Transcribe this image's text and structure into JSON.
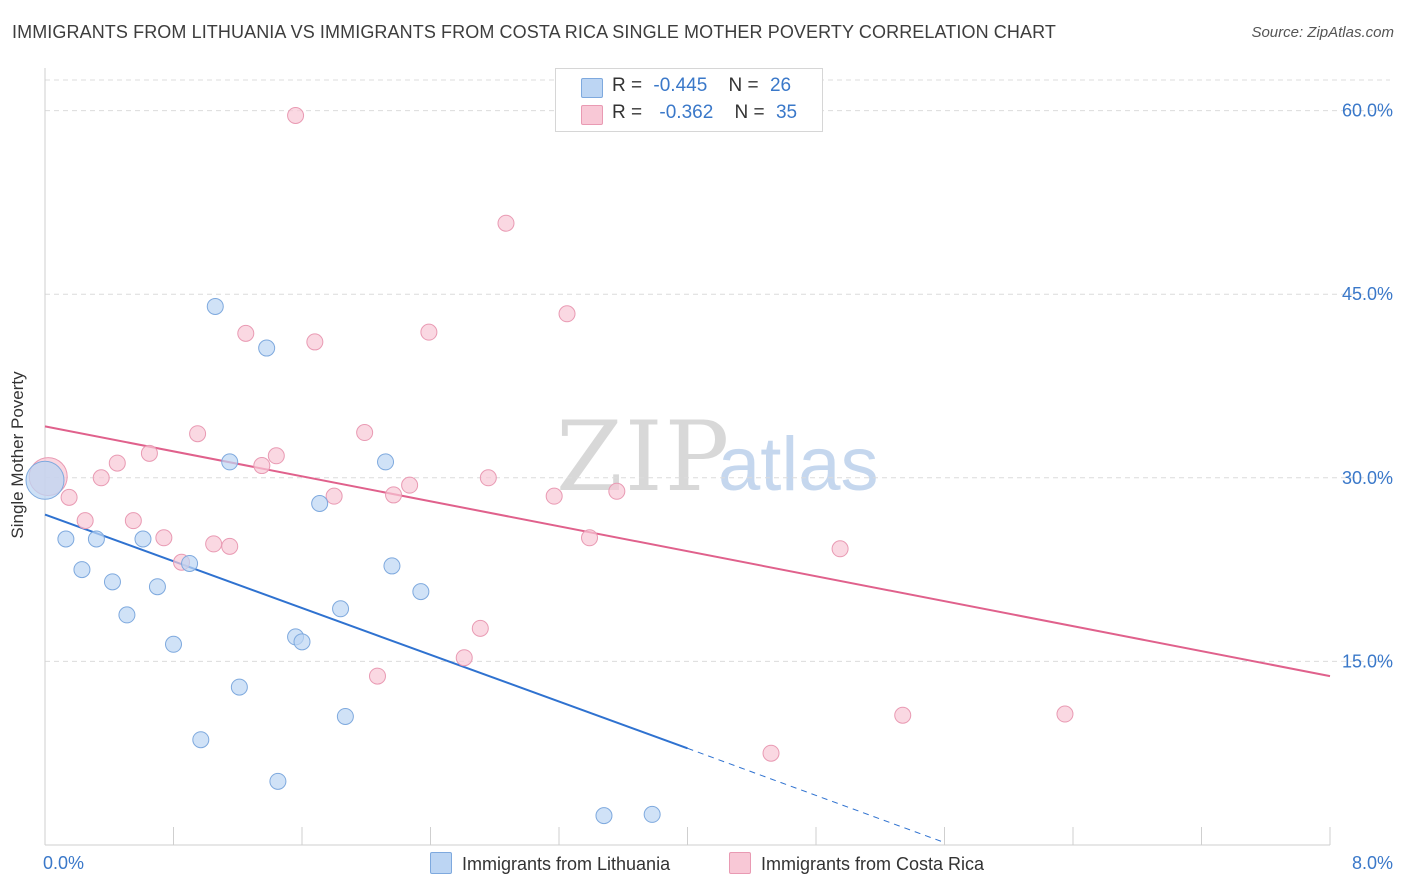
{
  "title": "IMMIGRANTS FROM LITHUANIA VS IMMIGRANTS FROM COSTA RICA SINGLE MOTHER POVERTY CORRELATION CHART",
  "source": "Source: ZipAtlas.com",
  "watermark": {
    "zip": "ZIP",
    "atlas": "atlas"
  },
  "legend_top": [
    {
      "r_label": "R =",
      "r_value": "-0.445",
      "n_label": "N =",
      "n_value": "26"
    },
    {
      "r_label": "R =",
      "r_value": "-0.362",
      "n_label": "N =",
      "n_value": "35"
    }
  ],
  "legend_bottom": [
    "Immigrants from Lithuania",
    "Immigrants from Costa Rica"
  ],
  "chart_data": {
    "type": "scatter",
    "xlabel": "",
    "ylabel": "Single Mother Poverty",
    "xlim": [
      0,
      8
    ],
    "ylim": [
      0,
      62.5
    ],
    "x_tick_labels": [
      "0.0%",
      "8.0%"
    ],
    "y_ticks": [
      15,
      30,
      45,
      60
    ],
    "y_tick_labels": [
      "15.0%",
      "30.0%",
      "45.0%",
      "60.0%"
    ],
    "colors": {
      "lithuania_fill": "#bcd5f3",
      "lithuania_stroke": "#7ea9de",
      "lithuania_line": "#2f72d0",
      "costa_rica_fill": "#f8c8d6",
      "costa_rica_stroke": "#e99ab3",
      "costa_rica_line": "#e0618c",
      "tick_label": "#3a78c9",
      "grid": "#dcdcdc"
    },
    "series": [
      {
        "name": "Immigrants from Lithuania",
        "r": -0.445,
        "n": 26,
        "trend": {
          "x0": 0.0,
          "y0": 27.0,
          "x1": 4.0,
          "y1": 7.9,
          "dash_x1": 5.6,
          "dash_y1": 0.2
        },
        "points": [
          {
            "x": 0.0,
            "y": 29.8,
            "size": "large"
          },
          {
            "x": 0.13,
            "y": 25.0
          },
          {
            "x": 0.23,
            "y": 22.5
          },
          {
            "x": 0.32,
            "y": 25.0
          },
          {
            "x": 0.42,
            "y": 21.5
          },
          {
            "x": 0.51,
            "y": 18.8
          },
          {
            "x": 0.61,
            "y": 25.0
          },
          {
            "x": 0.7,
            "y": 21.1
          },
          {
            "x": 0.8,
            "y": 16.4
          },
          {
            "x": 0.9,
            "y": 23.0
          },
          {
            "x": 0.97,
            "y": 8.6
          },
          {
            "x": 1.06,
            "y": 44.0
          },
          {
            "x": 1.15,
            "y": 31.3
          },
          {
            "x": 1.21,
            "y": 12.9
          },
          {
            "x": 1.38,
            "y": 40.6
          },
          {
            "x": 1.45,
            "y": 5.2
          },
          {
            "x": 1.56,
            "y": 17.0
          },
          {
            "x": 1.6,
            "y": 16.6
          },
          {
            "x": 1.71,
            "y": 27.9
          },
          {
            "x": 1.84,
            "y": 19.3
          },
          {
            "x": 1.87,
            "y": 10.5
          },
          {
            "x": 2.12,
            "y": 31.3
          },
          {
            "x": 2.16,
            "y": 22.8
          },
          {
            "x": 2.34,
            "y": 20.7
          },
          {
            "x": 3.48,
            "y": 2.4
          },
          {
            "x": 3.78,
            "y": 2.5
          }
        ]
      },
      {
        "name": "Immigrants from Costa Rica",
        "r": -0.362,
        "n": 35,
        "trend": {
          "x0": 0.0,
          "y0": 34.2,
          "x1": 8.0,
          "y1": 13.8
        },
        "points": [
          {
            "x": 0.02,
            "y": 30.1,
            "size": "large"
          },
          {
            "x": 0.15,
            "y": 28.4
          },
          {
            "x": 0.25,
            "y": 26.5
          },
          {
            "x": 0.35,
            "y": 30.0
          },
          {
            "x": 0.45,
            "y": 31.2
          },
          {
            "x": 0.55,
            "y": 26.5
          },
          {
            "x": 0.65,
            "y": 32.0
          },
          {
            "x": 0.74,
            "y": 25.1
          },
          {
            "x": 0.85,
            "y": 23.1
          },
          {
            "x": 0.95,
            "y": 33.6
          },
          {
            "x": 1.05,
            "y": 24.6
          },
          {
            "x": 1.15,
            "y": 24.4
          },
          {
            "x": 1.25,
            "y": 41.8
          },
          {
            "x": 1.35,
            "y": 31.0
          },
          {
            "x": 1.44,
            "y": 31.8
          },
          {
            "x": 1.56,
            "y": 59.6
          },
          {
            "x": 1.68,
            "y": 41.1
          },
          {
            "x": 1.8,
            "y": 28.5
          },
          {
            "x": 1.99,
            "y": 33.7
          },
          {
            "x": 2.07,
            "y": 13.8
          },
          {
            "x": 2.17,
            "y": 28.6
          },
          {
            "x": 2.27,
            "y": 29.4
          },
          {
            "x": 2.39,
            "y": 41.9
          },
          {
            "x": 2.61,
            "y": 15.3
          },
          {
            "x": 2.71,
            "y": 17.7
          },
          {
            "x": 2.76,
            "y": 30.0
          },
          {
            "x": 2.87,
            "y": 50.8
          },
          {
            "x": 3.17,
            "y": 28.5
          },
          {
            "x": 3.25,
            "y": 43.4
          },
          {
            "x": 3.39,
            "y": 25.1
          },
          {
            "x": 3.56,
            "y": 28.9
          },
          {
            "x": 4.52,
            "y": 7.5
          },
          {
            "x": 4.95,
            "y": 24.2
          },
          {
            "x": 5.34,
            "y": 10.6
          },
          {
            "x": 6.35,
            "y": 10.7
          }
        ]
      }
    ]
  }
}
